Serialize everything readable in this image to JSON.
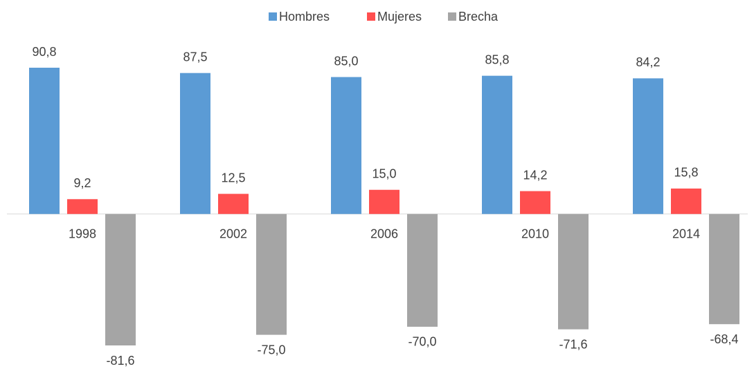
{
  "chart_data": {
    "type": "bar",
    "categories": [
      "1998",
      "2002",
      "2006",
      "2010",
      "2014"
    ],
    "series": [
      {
        "name": "Hombres",
        "color": "#5b9bd5",
        "values": [
          90.8,
          87.5,
          85.0,
          85.8,
          84.2
        ],
        "value_labels": [
          "90,8",
          "87,5",
          "85,0",
          "85,8",
          "84,2"
        ]
      },
      {
        "name": "Mujeres",
        "color": "#ff4f4f",
        "values": [
          9.2,
          12.5,
          15.0,
          14.2,
          15.8
        ],
        "value_labels": [
          "9,2",
          "12,5",
          "15,0",
          "14,2",
          "15,8"
        ]
      },
      {
        "name": "Brecha",
        "color": "#a5a5a5",
        "values": [
          -81.6,
          -75.0,
          -70.0,
          -71.6,
          -68.4
        ],
        "value_labels": [
          "-81,6",
          "-75,0",
          "-70,0",
          "-71,6",
          "-68,4"
        ]
      }
    ],
    "legend": "top"
  }
}
